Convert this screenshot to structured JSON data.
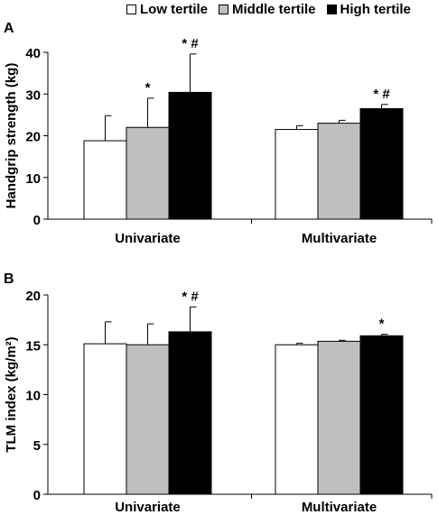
{
  "legend": [
    {
      "label": "Low tertile",
      "color": "#ffffff"
    },
    {
      "label": "Middle tertile",
      "color": "#bfbfbf"
    },
    {
      "label": "High tertile",
      "color": "#000000"
    }
  ],
  "chart_data": [
    {
      "type": "bar",
      "panel_label": "A",
      "ylabel": "Handgrip strength (kg)",
      "ylim": [
        0,
        40
      ],
      "yticks": [
        0,
        10,
        20,
        30,
        40
      ],
      "categories": [
        "Univariate",
        "Multivariate"
      ],
      "series": [
        {
          "name": "Low tertile",
          "color": "#ffffff",
          "values": [
            18.8,
            21.5
          ],
          "errors": [
            6.0,
            0.9
          ],
          "marks": [
            "",
            ""
          ]
        },
        {
          "name": "Middle tertile",
          "color": "#bfbfbf",
          "values": [
            22.0,
            23.0
          ],
          "errors": [
            7.0,
            0.7
          ],
          "marks": [
            "*",
            ""
          ]
        },
        {
          "name": "High tertile",
          "color": "#000000",
          "values": [
            30.4,
            26.5
          ],
          "errors": [
            9.2,
            1.0
          ],
          "marks": [
            "*#",
            "*#"
          ]
        }
      ]
    },
    {
      "type": "bar",
      "panel_label": "B",
      "ylabel": "TLM index (kg/m²)",
      "ylim": [
        0,
        20
      ],
      "yticks": [
        0,
        5,
        10,
        15,
        20
      ],
      "categories": [
        "Univariate",
        "Multivariate"
      ],
      "series": [
        {
          "name": "Low tertile",
          "color": "#ffffff",
          "values": [
            15.1,
            15.0
          ],
          "errors": [
            2.2,
            0.15
          ],
          "marks": [
            "",
            ""
          ]
        },
        {
          "name": "Middle tertile",
          "color": "#bfbfbf",
          "values": [
            15.0,
            15.35
          ],
          "errors": [
            2.1,
            0.1
          ],
          "marks": [
            "",
            ""
          ]
        },
        {
          "name": "High tertile",
          "color": "#000000",
          "values": [
            16.3,
            15.9
          ],
          "errors": [
            2.5,
            0.15
          ],
          "marks": [
            "*#",
            "*"
          ]
        }
      ]
    }
  ]
}
